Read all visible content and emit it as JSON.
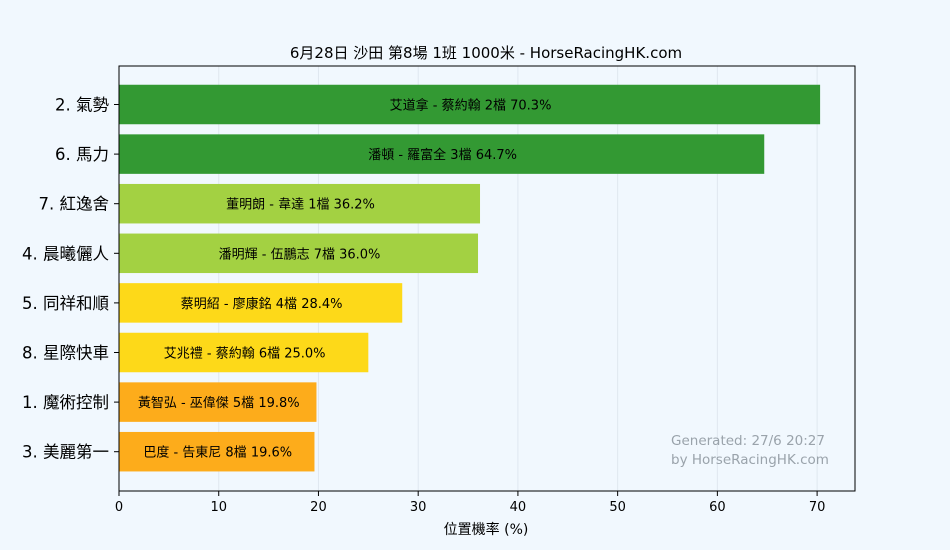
{
  "chart_data": {
    "type": "bar",
    "orientation": "horizontal",
    "title": "6月28日  沙田  第8場  1班  1000米 - HorseRacingHK.com",
    "xlabel": "位置機率 (%)",
    "ylabel": "",
    "xlim": [
      0,
      73.8
    ],
    "xticks": [
      0,
      10,
      20,
      30,
      40,
      50,
      60,
      70
    ],
    "grid": "vertical",
    "categories": [
      "2. 氣勢",
      "6. 馬力",
      "7. 紅逸舍",
      "4. 晨曦儷人",
      "5. 同祥和順",
      "8. 星際快車",
      "1. 魔術控制",
      "3. 美麗第一"
    ],
    "values": [
      70.3,
      64.7,
      36.2,
      36.0,
      28.4,
      25.0,
      19.8,
      19.6
    ],
    "bar_labels": [
      "艾道拿 - 蔡約翰 2檔  70.3%",
      "潘頓 - 羅富全 3檔  64.7%",
      "董明朗 - 韋達 1檔  36.2%",
      "潘明輝 - 伍鵬志 7檔  36.0%",
      "蔡明紹 - 廖康銘 4檔  28.4%",
      "艾兆禮 - 蔡約翰 6檔  25.0%",
      "黃智弘 - 巫偉傑 5檔  19.8%",
      "巴度 - 告東尼 8檔  19.6%"
    ],
    "bar_colors": [
      "#339933",
      "#339933",
      "#a3d142",
      "#a3d142",
      "#fdd919",
      "#fdd919",
      "#fdac1b",
      "#fdac1b"
    ],
    "watermark": [
      "Generated: 27/6 20:27",
      "by HorseRacingHK.com"
    ],
    "colors": {
      "background": "#f1f8fe",
      "grid": "#dfe7ef",
      "axis": "#000000",
      "watermark": "#9aa3ab"
    }
  }
}
